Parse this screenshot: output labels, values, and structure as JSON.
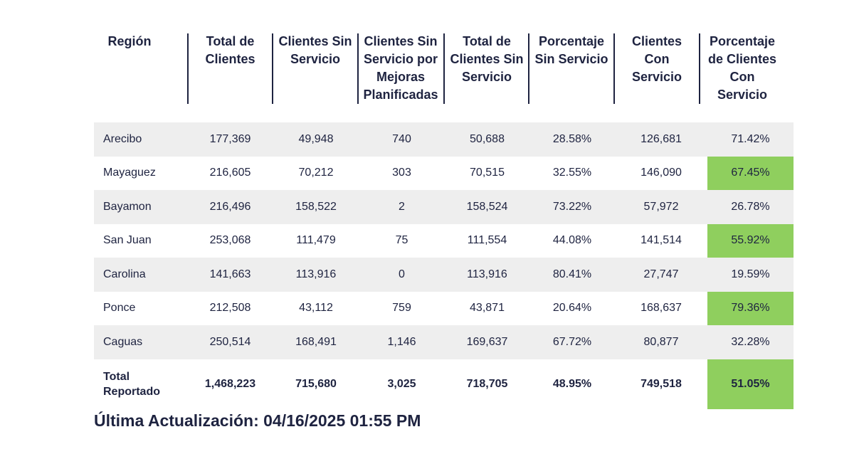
{
  "table": {
    "headers": [
      "Región",
      "Total de\nClientes",
      "Clientes Sin\nServicio",
      "Clientes Sin\nServicio por\nMejoras\nPlanificadas",
      "Total de\nClientes Sin\nServicio",
      "Porcentaje\nSin Servicio",
      "Clientes\nCon\nServicio",
      "Porcentaje\nde Clientes\nCon\nServicio"
    ],
    "rows": [
      [
        "Arecibo",
        "177,369",
        "49,948",
        "740",
        "50,688",
        "28.58%",
        "126,681",
        "71.42%"
      ],
      [
        "Mayaguez",
        "216,605",
        "70,212",
        "303",
        "70,515",
        "32.55%",
        "146,090",
        "67.45%"
      ],
      [
        "Bayamon",
        "216,496",
        "158,522",
        "2",
        "158,524",
        "73.22%",
        "57,972",
        "26.78%"
      ],
      [
        "San Juan",
        "253,068",
        "111,479",
        "75",
        "111,554",
        "44.08%",
        "141,514",
        "55.92%"
      ],
      [
        "Carolina",
        "141,663",
        "113,916",
        "0",
        "113,916",
        "80.41%",
        "27,747",
        "19.59%"
      ],
      [
        "Ponce",
        "212,508",
        "43,112",
        "759",
        "43,871",
        "20.64%",
        "168,637",
        "79.36%"
      ],
      [
        "Caguas",
        "250,514",
        "168,491",
        "1,146",
        "169,637",
        "67.72%",
        "80,877",
        "32.28%"
      ]
    ],
    "total": [
      "Total\nReportado",
      "1,468,223",
      "715,680",
      "3,025",
      "718,705",
      "48.95%",
      "749,518",
      "51.05%"
    ]
  },
  "colors": {
    "highlight": "#8fcf5e",
    "row_shade": "#eeeeee",
    "text": "#1e2340"
  },
  "footer": {
    "last_updated": "Última Actualización: 04/16/2025 01:55 PM"
  }
}
